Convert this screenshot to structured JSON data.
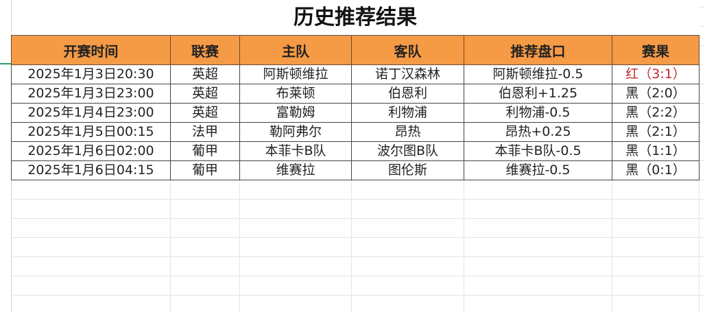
{
  "sheet": {
    "title": "历史推荐结果",
    "columns": [
      "开赛时间",
      "联赛",
      "主队",
      "客队",
      "推荐盘口",
      "赛果"
    ],
    "rows": [
      [
        "2025年1月3日20:30",
        "英超",
        "阿斯顿维拉",
        "诺丁汉森林",
        "阿斯顿维拉-0.5",
        "红（3:1）"
      ],
      [
        "2025年1月3日23:00",
        "英超",
        "布莱顿",
        "伯恩利",
        "伯恩利+1.25",
        "黑（2:0）"
      ],
      [
        "2025年1月4日23:00",
        "英超",
        "富勒姆",
        "利物浦",
        "利物浦-0.5",
        "黑（2:2）"
      ],
      [
        "2025年1月5日00:15",
        "法甲",
        "勒阿弗尔",
        "昂热",
        "昂热+0.25",
        "黑（2:1）"
      ],
      [
        "2025年1月6日02:00",
        "葡甲",
        "本菲卡B队",
        "波尔图B队",
        "本菲卡B队-0.5",
        "黑（1:1）"
      ],
      [
        "2025年1月6日04:15",
        "葡甲",
        "维赛拉",
        "图伦斯",
        "维赛拉-0.5",
        "黑（0:1）"
      ]
    ],
    "colors": {
      "header_bg": "#f59a45",
      "win": "#c0292b",
      "loss": "#222222"
    }
  }
}
